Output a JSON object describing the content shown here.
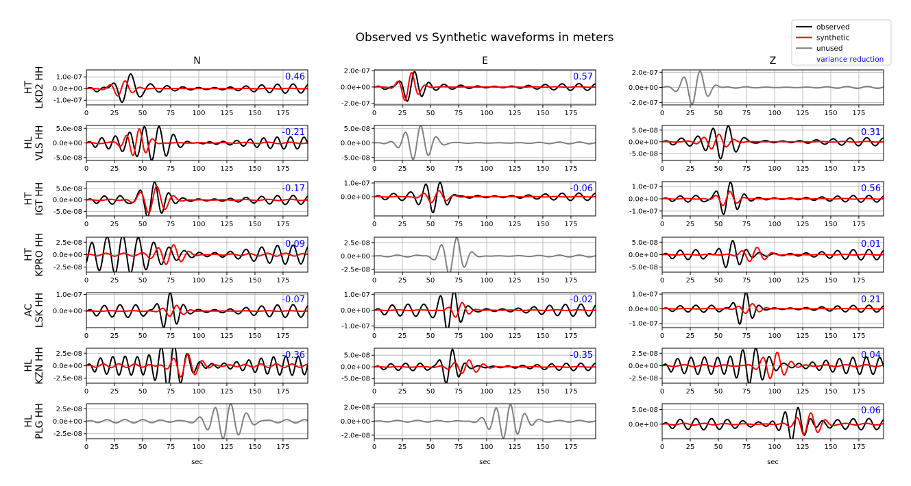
{
  "chart_data": {
    "type": "line",
    "title": "Observed vs Synthetic waveforms in meters",
    "xlabel": "sec",
    "xlim": [
      0,
      197
    ],
    "xticks": [
      0,
      25,
      50,
      75,
      100,
      125,
      150,
      175
    ],
    "grid": true,
    "legend_placement": "top-right",
    "legend": [
      {
        "name": "observed",
        "color": "#000000",
        "kind": "line"
      },
      {
        "name": "synthetic",
        "color": "#ff0000",
        "kind": "line"
      },
      {
        "name": "unused",
        "color": "#808080",
        "kind": "line"
      },
      {
        "name": "variance reduction",
        "color": "#0000ff",
        "kind": "text"
      }
    ],
    "columns": [
      "N",
      "E",
      "Z"
    ],
    "rows": [
      {
        "network": "HT",
        "station": "LKD2 HH"
      },
      {
        "network": "HL",
        "station": "VLS HH"
      },
      {
        "network": "HT",
        "station": "IGT HH"
      },
      {
        "network": "HT",
        "station": "KPRO HH"
      },
      {
        "network": "AC",
        "station": "LSK HH"
      },
      {
        "network": "HL",
        "station": "KZN HH"
      },
      {
        "network": "HL",
        "station": "PLG HH"
      }
    ],
    "panels": [
      [
        {
          "used": true,
          "vr": "0.46",
          "ylim": [
            -1.4e-07,
            1.6e-07
          ],
          "yticks": [
            -1e-07,
            0,
            1e-07
          ],
          "ytick_labels": [
            "-1.0e-07",
            "0.0e+00",
            "1.0e-07"
          ],
          "obs": {
            "amp": 1.6e-07,
            "center": 35,
            "width": 14,
            "period": 16,
            "bg": 0.25,
            "bgp": 14
          },
          "syn": {
            "amp": 7e-08,
            "center": 32,
            "width": 12,
            "period": 14,
            "bg": 0.04,
            "bgp": 20
          }
        },
        {
          "used": true,
          "vr": "0.57",
          "ylim": [
            -2.2e-07,
            2.1e-07
          ],
          "yticks": [
            -2e-07,
            0,
            2e-07
          ],
          "ytick_labels": [
            "-2.0e-07",
            "0.0e+00",
            "2.0e-07"
          ],
          "obs": {
            "amp": 2.1e-07,
            "center": 33,
            "width": 12,
            "period": 14,
            "bg": 0.2,
            "bgp": 15
          },
          "syn": {
            "amp": 1.9e-07,
            "center": 31,
            "width": 10,
            "period": 13,
            "bg": 0.02,
            "bgp": 20
          }
        },
        {
          "used": false,
          "ylim": [
            -2.3e-07,
            2.3e-07
          ],
          "yticks": [
            -2e-07,
            0,
            2e-07
          ],
          "ytick_labels": [
            "-2.0e-07",
            "0.0e+00",
            "2.0e-07"
          ],
          "obs": {
            "amp": 2.3e-07,
            "center": 30,
            "width": 14,
            "period": 15,
            "bg": 0.06,
            "bgp": 18
          }
        }
      ],
      [
        {
          "used": true,
          "vr": "-0.21",
          "ylim": [
            -6e-08,
            6e-08
          ],
          "yticks": [
            -5e-08,
            0,
            5e-08
          ],
          "ytick_labels": [
            "-5.0e-08",
            "0.0e+00",
            "5.0e-08"
          ],
          "obs": {
            "amp": 6e-08,
            "center": 62,
            "width": 22,
            "period": 13,
            "bg": 0.35,
            "bgp": 12
          },
          "syn": {
            "amp": 5e-08,
            "center": 45,
            "width": 12,
            "period": 12,
            "bg": 0.05,
            "bgp": 20
          }
        },
        {
          "used": false,
          "ylim": [
            -6e-08,
            6e-08
          ],
          "yticks": [
            -5e-08,
            0,
            5e-08
          ],
          "ytick_labels": [
            "-5.0e-08",
            "0.0e+00",
            "5.0e-08"
          ],
          "obs": {
            "amp": 6e-08,
            "center": 38,
            "width": 16,
            "period": 14,
            "bg": 0.05,
            "bgp": 18
          }
        },
        {
          "used": true,
          "vr": "0.31",
          "ylim": [
            -8e-08,
            7e-08
          ],
          "yticks": [
            -5e-08,
            0,
            5e-08
          ],
          "ytick_labels": [
            "-5.0e-08",
            "0.0e+00",
            "5.0e-08"
          ],
          "obs": {
            "amp": 7e-08,
            "center": 55,
            "width": 16,
            "period": 14,
            "bg": 0.25,
            "bgp": 15
          },
          "syn": {
            "amp": 3.5e-08,
            "center": 48,
            "width": 14,
            "period": 14,
            "bg": 0.05,
            "bgp": 20
          }
        }
      ],
      [
        {
          "used": true,
          "vr": "-0.17",
          "ylim": [
            -7e-08,
            8e-08
          ],
          "yticks": [
            -5e-08,
            0,
            5e-08
          ],
          "ytick_labels": [
            "-5.0e-08",
            "0.0e+00",
            "5.0e-08"
          ],
          "obs": {
            "amp": 8e-08,
            "center": 58,
            "width": 14,
            "period": 13,
            "bg": 0.25,
            "bgp": 14
          },
          "syn": {
            "amp": 6e-08,
            "center": 60,
            "width": 16,
            "period": 15,
            "bg": 0.05,
            "bgp": 20
          }
        },
        {
          "used": true,
          "vr": "-0.06",
          "ylim": [
            -1.4e-07,
            1.1e-07
          ],
          "yticks": [
            0,
            1e-07
          ],
          "ytick_labels": [
            "0.0e+00",
            "1.0e-07"
          ],
          "obs": {
            "amp": 1.1e-07,
            "center": 55,
            "width": 14,
            "period": 13,
            "bg": 0.25,
            "bgp": 15
          },
          "syn": {
            "amp": 4.5e-08,
            "center": 55,
            "width": 14,
            "period": 14,
            "bg": 0.05,
            "bgp": 20
          }
        },
        {
          "used": true,
          "vr": "0.56",
          "ylim": [
            -1.4e-07,
            1.4e-07
          ],
          "yticks": [
            -1e-07,
            0,
            1e-07
          ],
          "ytick_labels": [
            "-1.0e-07",
            "0.0e+00",
            "1.0e-07"
          ],
          "obs": {
            "amp": 1.4e-07,
            "center": 58,
            "width": 12,
            "period": 13,
            "bg": 0.2,
            "bgp": 14
          },
          "syn": {
            "amp": 6e-08,
            "center": 58,
            "width": 12,
            "period": 13,
            "bg": 0.05,
            "bgp": 20
          }
        }
      ],
      [
        {
          "used": true,
          "vr": "0.09",
          "ylim": [
            -3.5e-08,
            3.5e-08
          ],
          "yticks": [
            -2.5e-08,
            0,
            2.5e-08
          ],
          "ytick_labels": [
            "-2.5e-08",
            "0.0e+00",
            "2.5e-08"
          ],
          "obs": {
            "amp": 3.5e-08,
            "center": 30,
            "width": 40,
            "period": 14,
            "bg": 0.55,
            "bgp": 14
          },
          "syn": {
            "amp": 2e-08,
            "center": 75,
            "width": 16,
            "period": 14,
            "bg": 0.15,
            "bgp": 16
          }
        },
        {
          "used": false,
          "ylim": [
            -3e-08,
            3.5e-08
          ],
          "yticks": [
            -2.5e-08,
            0,
            2.5e-08
          ],
          "ytick_labels": [
            "-2.5e-08",
            "0.0e+00",
            "2.5e-08"
          ],
          "obs": {
            "amp": 3.5e-08,
            "center": 70,
            "width": 14,
            "period": 14,
            "bg": 0.05,
            "bgp": 18
          }
        },
        {
          "used": true,
          "vr": "0.01",
          "ylim": [
            -7e-08,
            7e-08
          ],
          "yticks": [
            -5e-08,
            0,
            5e-08
          ],
          "ytick_labels": [
            "-5.0e-08",
            "0.0e+00",
            "5.0e-08"
          ],
          "obs": {
            "amp": 7e-08,
            "center": 60,
            "width": 14,
            "period": 13,
            "bg": 0.3,
            "bgp": 14
          },
          "syn": {
            "amp": 3e-08,
            "center": 82,
            "width": 14,
            "period": 14,
            "bg": 0.05,
            "bgp": 20
          }
        }
      ],
      [
        {
          "used": true,
          "vr": "-0.07",
          "ylim": [
            -1e-07,
            1.1e-07
          ],
          "yticks": [
            0,
            1e-07
          ],
          "ytick_labels": [
            "0.0e+00",
            "1.0e-07"
          ],
          "obs": {
            "amp": 1.1e-07,
            "center": 72,
            "width": 12,
            "period": 12,
            "bg": 0.35,
            "bgp": 14
          },
          "syn": {
            "amp": 3.5e-08,
            "center": 78,
            "width": 12,
            "period": 13,
            "bg": 0.05,
            "bgp": 20
          }
        },
        {
          "used": true,
          "vr": "-0.02",
          "ylim": [
            -1.1e-07,
            1.1e-07
          ],
          "yticks": [
            -1e-07,
            0,
            1e-07
          ],
          "ytick_labels": [
            "-1.0e-07",
            "0.0e+00",
            "1.0e-07"
          ],
          "obs": {
            "amp": 1.1e-07,
            "center": 68,
            "width": 12,
            "period": 12,
            "bg": 0.35,
            "bgp": 14
          },
          "syn": {
            "amp": 5e-08,
            "center": 76,
            "width": 10,
            "period": 13,
            "bg": 0.05,
            "bgp": 20
          }
        },
        {
          "used": true,
          "vr": "0.21",
          "ylim": [
            -1.3e-07,
            1.1e-07
          ],
          "yticks": [
            -1e-07,
            0,
            1e-07
          ],
          "ytick_labels": [
            "-1.0e-07",
            "0.0e+00",
            "1.0e-07"
          ],
          "obs": {
            "amp": 1.2e-07,
            "center": 72,
            "width": 10,
            "period": 12,
            "bg": 0.2,
            "bgp": 14
          },
          "syn": {
            "amp": 3.5e-08,
            "center": 78,
            "width": 12,
            "period": 13,
            "bg": 0.05,
            "bgp": 20
          }
        }
      ],
      [
        {
          "used": true,
          "vr": "-0.36",
          "ylim": [
            -3.5e-08,
            3.5e-08
          ],
          "yticks": [
            -2.5e-08,
            0,
            2.5e-08
          ],
          "ytick_labels": [
            "-2.5e-08",
            "0.0e+00",
            "2.5e-08"
          ],
          "obs": {
            "amp": 3.5e-08,
            "center": 75,
            "width": 18,
            "period": 12,
            "bg": 0.55,
            "bgp": 11
          },
          "syn": {
            "amp": 2.5e-08,
            "center": 88,
            "width": 16,
            "period": 13,
            "bg": 0.15,
            "bgp": 14
          }
        },
        {
          "used": true,
          "vr": "-0.35",
          "ylim": [
            -7e-08,
            8e-08
          ],
          "yticks": [
            -5e-08,
            0,
            5e-08
          ],
          "ytick_labels": [
            "-5.0e-08",
            "0.0e+00",
            "5.0e-08"
          ],
          "obs": {
            "amp": 8e-08,
            "center": 67,
            "width": 10,
            "period": 12,
            "bg": 0.2,
            "bgp": 13
          },
          "syn": {
            "amp": 3e-08,
            "center": 82,
            "width": 16,
            "period": 13,
            "bg": 0.05,
            "bgp": 20
          }
        },
        {
          "used": true,
          "vr": "0.04",
          "ylim": [
            -3.5e-08,
            3.5e-08
          ],
          "yticks": [
            -2.5e-08,
            0,
            2.5e-08
          ],
          "ytick_labels": [
            "-2.5e-08",
            "0.0e+00",
            "2.5e-08"
          ],
          "obs": {
            "amp": 3.5e-08,
            "center": 80,
            "width": 18,
            "period": 12,
            "bg": 0.5,
            "bgp": 12
          },
          "syn": {
            "amp": 2.8e-08,
            "center": 100,
            "width": 14,
            "period": 13,
            "bg": 0.08,
            "bgp": 18
          }
        }
      ],
      [
        {
          "used": false,
          "ylim": [
            -3.5e-08,
            3.5e-08
          ],
          "yticks": [
            -2.5e-08,
            0,
            2.5e-08
          ],
          "ytick_labels": [
            "-2.5e-08",
            "0.0e+00",
            "2.5e-08"
          ],
          "obs": {
            "amp": 3.5e-08,
            "center": 125,
            "width": 20,
            "period": 14,
            "bg": 0.1,
            "bgp": 16
          }
        },
        {
          "used": false,
          "ylim": [
            -2.5e-08,
            2.5e-08
          ],
          "yticks": [
            -2e-08,
            0,
            2e-08
          ],
          "ytick_labels": [
            "-2.0e-08",
            "0.0e+00",
            "2.0e-08"
          ],
          "obs": {
            "amp": 2.5e-08,
            "center": 118,
            "width": 18,
            "period": 13,
            "bg": 0.05,
            "bgp": 18
          }
        },
        {
          "used": true,
          "vr": "0.06",
          "ylim": [
            -5e-08,
            7e-08
          ],
          "yticks": [
            0,
            5e-08
          ],
          "ytick_labels": [
            "0.0e+00",
            "5.0e-08"
          ],
          "obs": {
            "amp": 6.5e-08,
            "center": 118,
            "width": 14,
            "period": 12,
            "bg": 0.3,
            "bgp": 14
          },
          "syn": {
            "amp": 4e-08,
            "center": 130,
            "width": 14,
            "period": 13,
            "bg": 0.08,
            "bgp": 18
          }
        }
      ]
    ]
  }
}
